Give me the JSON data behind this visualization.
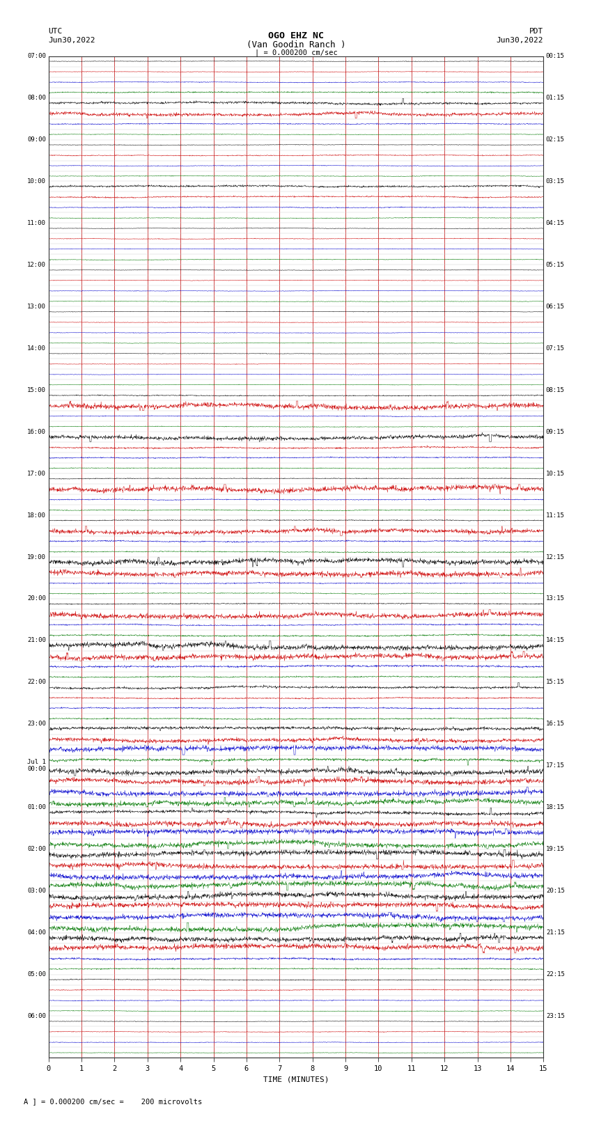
{
  "title_line1": "OGO EHZ NC",
  "title_line2": "(Van Goodin Ranch )",
  "scale_label": "| = 0.000200 cm/sec",
  "utc_label1": "UTC",
  "utc_label2": "Jun30,2022",
  "pdt_label1": "PDT",
  "pdt_label2": "Jun30,2022",
  "xlabel": "TIME (MINUTES)",
  "footer_label": "A ] = 0.000200 cm/sec =    200 microvolts",
  "xlim": [
    0,
    15
  ],
  "xticks": [
    0,
    1,
    2,
    3,
    4,
    5,
    6,
    7,
    8,
    9,
    10,
    11,
    12,
    13,
    14,
    15
  ],
  "bg_color": "#ffffff",
  "grid_color": "#cc0000",
  "left_times": [
    "07:00",
    "08:00",
    "09:00",
    "10:00",
    "11:00",
    "12:00",
    "13:00",
    "14:00",
    "15:00",
    "16:00",
    "17:00",
    "18:00",
    "19:00",
    "20:00",
    "21:00",
    "22:00",
    "23:00",
    "Jul 1\n00:00",
    "01:00",
    "02:00",
    "03:00",
    "04:00",
    "05:00",
    "06:00"
  ],
  "right_times": [
    "00:15",
    "01:15",
    "02:15",
    "03:15",
    "04:15",
    "05:15",
    "06:15",
    "07:15",
    "08:15",
    "09:15",
    "10:15",
    "11:15",
    "12:15",
    "13:15",
    "14:15",
    "15:15",
    "16:15",
    "17:15",
    "18:15",
    "19:15",
    "20:15",
    "21:15",
    "22:15",
    "23:15"
  ],
  "n_rows": 96,
  "colors_cycle": [
    "#000000",
    "#cc0000",
    "#0000cc",
    "#007700"
  ],
  "row_noise": [
    0.04,
    0.04,
    0.06,
    0.1,
    0.18,
    0.25,
    0.08,
    0.05,
    0.04,
    0.07,
    0.05,
    0.05,
    0.15,
    0.1,
    0.07,
    0.05,
    0.04,
    0.05,
    0.04,
    0.05,
    0.04,
    0.04,
    0.04,
    0.04,
    0.04,
    0.04,
    0.04,
    0.04,
    0.04,
    0.04,
    0.04,
    0.04,
    0.08,
    0.4,
    0.06,
    0.05,
    0.3,
    0.12,
    0.09,
    0.06,
    0.06,
    0.4,
    0.07,
    0.07,
    0.07,
    0.35,
    0.1,
    0.08,
    0.4,
    0.4,
    0.08,
    0.07,
    0.08,
    0.4,
    0.1,
    0.12,
    0.4,
    0.4,
    0.15,
    0.1,
    0.18,
    0.1,
    0.1,
    0.1,
    0.25,
    0.3,
    0.4,
    0.2,
    0.4,
    0.4,
    0.4,
    0.4,
    0.25,
    0.4,
    0.4,
    0.4,
    0.4,
    0.4,
    0.4,
    0.4,
    0.4,
    0.4,
    0.4,
    0.4,
    0.4,
    0.4,
    0.15,
    0.1,
    0.07,
    0.07,
    0.06,
    0.05,
    0.04,
    0.05,
    0.05,
    0.04
  ]
}
